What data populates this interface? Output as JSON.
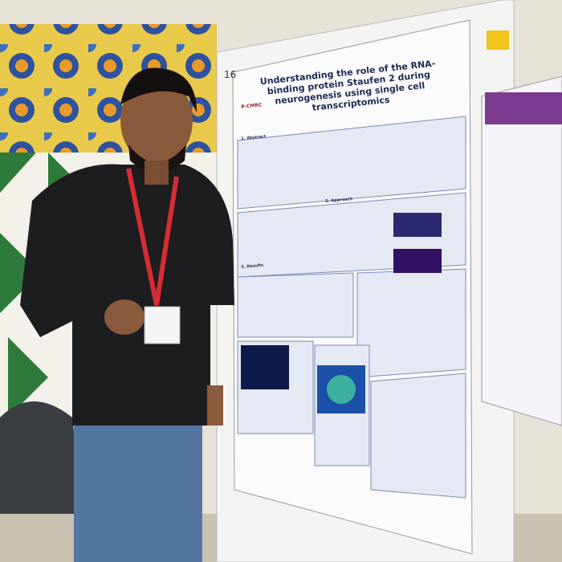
{
  "poster": {
    "number": "16",
    "title": "Understanding the role of the RNA-binding protein Staufen 2 during neurogenesis using single cell transcriptomics",
    "institute": "P-CMRC",
    "sections": [
      "1. Abstract",
      "2. Approach",
      "3. Results"
    ]
  }
}
